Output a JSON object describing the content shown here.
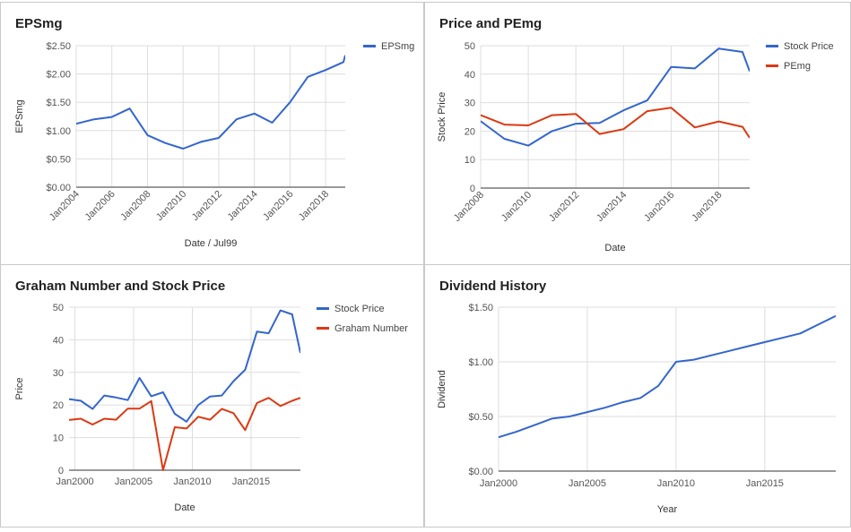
{
  "colors": {
    "blue": "#3366cc",
    "red": "#dc3912",
    "grid": "#dddddd",
    "axis": "#333333"
  },
  "chart_data": [
    {
      "type": "line",
      "title": "EPSmg",
      "xlabel": "Date / Jul99",
      "ylabel": "EPSmg",
      "xlim": [
        2004,
        2019.1
      ],
      "ylim": [
        0,
        2.5
      ],
      "x_ticks": [
        2004,
        2006,
        2008,
        2010,
        2012,
        2014,
        2016,
        2018
      ],
      "x_tick_labels": [
        "Jan2004",
        "Jan2006",
        "Jan2008",
        "Jan2010",
        "Jan2012",
        "Jan2014",
        "Jan2016",
        "Jan2018"
      ],
      "y_ticks": [
        0,
        0.5,
        1.0,
        1.5,
        2.0,
        2.5
      ],
      "y_tick_labels": [
        "$0.00",
        "$0.50",
        "$1.00",
        "$1.50",
        "$2.00",
        "$2.50"
      ],
      "grid": true,
      "legend_position": "right",
      "series": [
        {
          "name": "EPSmg",
          "color": "#3366cc",
          "x": [
            2004,
            2005,
            2006,
            2007,
            2008,
            2009,
            2010,
            2011,
            2012,
            2013,
            2014,
            2015,
            2016,
            2017,
            2018,
            2019,
            2019.1
          ],
          "y": [
            1.12,
            1.2,
            1.24,
            1.39,
            0.92,
            0.78,
            0.68,
            0.8,
            0.87,
            1.2,
            1.3,
            1.14,
            1.5,
            1.95,
            2.07,
            2.21,
            2.33
          ]
        }
      ]
    },
    {
      "type": "line",
      "title": "Price and PEmg",
      "xlabel": "Date",
      "ylabel": "Stock Price",
      "xlim": [
        2008,
        2019.3
      ],
      "ylim": [
        0,
        50
      ],
      "x_ticks": [
        2008,
        2010,
        2012,
        2014,
        2016,
        2018
      ],
      "x_tick_labels": [
        "Jan2008",
        "Jan2010",
        "Jan2012",
        "Jan2014",
        "Jan2016",
        "Jan2018"
      ],
      "y_ticks": [
        0,
        10,
        20,
        30,
        40,
        50
      ],
      "y_tick_labels": [
        "0",
        "10",
        "20",
        "30",
        "40",
        "50"
      ],
      "grid": true,
      "legend_position": "right",
      "series": [
        {
          "name": "Stock Price",
          "color": "#3366cc",
          "x": [
            2008,
            2009,
            2010,
            2011,
            2012,
            2013,
            2014,
            2015,
            2016,
            2017,
            2018,
            2019,
            2019.3
          ],
          "y": [
            23.5,
            17.3,
            14.9,
            20,
            22.6,
            22.9,
            27.3,
            30.8,
            42.5,
            42,
            49,
            47.8,
            41
          ]
        },
        {
          "name": "PEmg",
          "color": "#dc3912",
          "x": [
            2008,
            2009,
            2010,
            2011,
            2012,
            2013,
            2014,
            2015,
            2016,
            2017,
            2018,
            2019,
            2019.3
          ],
          "y": [
            25.6,
            22.3,
            22,
            25.6,
            26,
            19,
            20.7,
            27,
            28.2,
            21.3,
            23.4,
            21.5,
            17.6
          ]
        }
      ]
    },
    {
      "type": "line",
      "title": "Graham Number and Stock Price",
      "xlabel": "Date",
      "ylabel": "Price",
      "xlim": [
        1999.5,
        2019.2
      ],
      "ylim": [
        0,
        50
      ],
      "x_ticks": [
        2000,
        2005,
        2010,
        2015
      ],
      "x_tick_labels": [
        "Jan2000",
        "Jan2005",
        "Jan2010",
        "Jan2015"
      ],
      "y_ticks": [
        0,
        10,
        20,
        30,
        40,
        50
      ],
      "y_tick_labels": [
        "0",
        "10",
        "20",
        "30",
        "40",
        "50"
      ],
      "grid": true,
      "legend_position": "right",
      "series": [
        {
          "name": "Stock Price",
          "color": "#3366cc",
          "x": [
            1999.5,
            2000.5,
            2001.5,
            2002.5,
            2003.5,
            2004.5,
            2005.5,
            2006.5,
            2007.5,
            2008.5,
            2009.5,
            2010.5,
            2011.5,
            2012.5,
            2013.5,
            2014.5,
            2015.5,
            2016.5,
            2017.5,
            2018.5,
            2019.2
          ],
          "y": [
            21.8,
            21.3,
            18.8,
            22.9,
            22.3,
            21.5,
            28.3,
            22.7,
            23.9,
            17.3,
            14.9,
            20,
            22.6,
            22.9,
            27.3,
            30.8,
            42.5,
            42,
            49,
            47.8,
            36
          ]
        },
        {
          "name": "Graham Number",
          "color": "#dc3912",
          "x": [
            1999.5,
            2000.5,
            2001.5,
            2002.5,
            2003.5,
            2004.5,
            2005.5,
            2006.5,
            2007.5,
            2008.5,
            2009.5,
            2010.5,
            2011.5,
            2012.5,
            2013.5,
            2014.5,
            2015.5,
            2016.5,
            2017.5,
            2018.5,
            2019.2
          ],
          "y": [
            15.4,
            15.8,
            14,
            15.8,
            15.5,
            18.9,
            18.9,
            21.2,
            0,
            13.2,
            12.8,
            16.4,
            15.5,
            18.8,
            17.5,
            12.3,
            20.6,
            22.2,
            19.7,
            21.3,
            22.2
          ]
        }
      ]
    },
    {
      "type": "line",
      "title": "Dividend History",
      "xlabel": "Year",
      "ylabel": "Dividend",
      "xlim": [
        2000,
        2019
      ],
      "ylim": [
        0,
        1.5
      ],
      "x_ticks": [
        2000,
        2005,
        2010,
        2015
      ],
      "x_tick_labels": [
        "Jan2000",
        "Jan2005",
        "Jan2010",
        "Jan2015"
      ],
      "y_ticks": [
        0,
        0.5,
        1.0,
        1.5
      ],
      "y_tick_labels": [
        "$0.00",
        "$0.50",
        "$1.00",
        "$1.50"
      ],
      "grid": true,
      "legend_position": "none",
      "series": [
        {
          "name": "",
          "color": "#3366cc",
          "x": [
            2000,
            2001,
            2002,
            2003,
            2004,
            2005,
            2006,
            2007,
            2008,
            2009,
            2010,
            2011,
            2012,
            2013,
            2014,
            2015,
            2016,
            2017,
            2018,
            2019
          ],
          "y": [
            0.31,
            0.36,
            0.42,
            0.48,
            0.5,
            0.54,
            0.58,
            0.63,
            0.67,
            0.78,
            1.0,
            1.02,
            1.06,
            1.1,
            1.14,
            1.18,
            1.22,
            1.26,
            1.34,
            1.42
          ]
        }
      ]
    }
  ]
}
